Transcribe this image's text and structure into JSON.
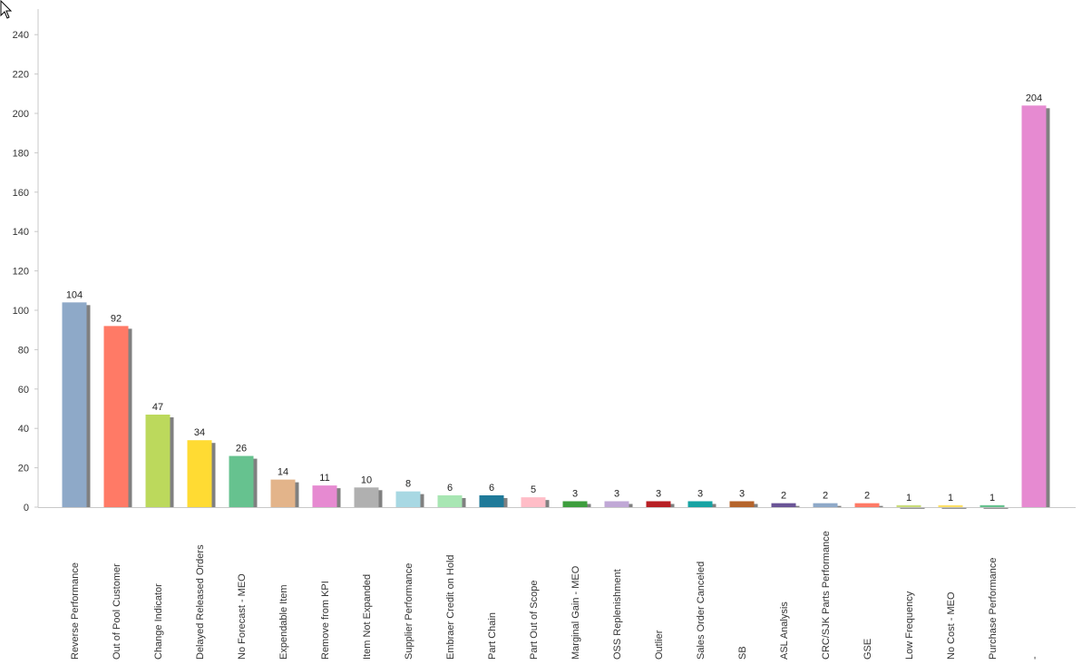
{
  "chart_data": {
    "type": "bar",
    "title": "",
    "xlabel": "",
    "ylabel": "",
    "ylim": [
      0,
      250
    ],
    "yticks": [
      0,
      20,
      40,
      60,
      80,
      100,
      120,
      140,
      160,
      180,
      200,
      220,
      240
    ],
    "grid": false,
    "legend": "none",
    "shadow_color": "#808080",
    "categories": [
      "Reverse Performance",
      "Out of Pool Customer",
      "Change Indicator",
      "Delayed Released Orders",
      "No Forecast - MEO",
      "Expendable Item",
      "Remove from KPI",
      "Item Not Expanded",
      "Supplier Performance",
      "Embraer Credit on Hold",
      "Part Chain",
      "Part Out of Scope",
      "Marginal Gain - MEO",
      "OSS Replenishment",
      "Outlier",
      "Sales Order Canceled",
      "SB",
      "ASL Analysis",
      "CRC/SJK Parts Performance",
      "GSE",
      "Low Frequency",
      "No Cost - MEO",
      "Purchase Performance",
      "-"
    ],
    "values": [
      104,
      92,
      47,
      34,
      26,
      14,
      11,
      10,
      8,
      6,
      6,
      5,
      3,
      3,
      3,
      3,
      3,
      2,
      2,
      2,
      1,
      1,
      1,
      204
    ],
    "colors": [
      "#8ea9c8",
      "#ff7a66",
      "#bcd95c",
      "#ffdb33",
      "#66c28f",
      "#e3b48a",
      "#e68ad1",
      "#b0b0b0",
      "#a8d8e3",
      "#a8e6b3",
      "#1f7a99",
      "#ffbdc7",
      "#3d9e3d",
      "#c0a8d6",
      "#b81f24",
      "#17a3a3",
      "#b5642b",
      "#6a5496",
      "#8ea9c8",
      "#ff7a66",
      "#c9dc7a",
      "#ffe066",
      "#66c28f",
      "#e68ad1"
    ]
  }
}
